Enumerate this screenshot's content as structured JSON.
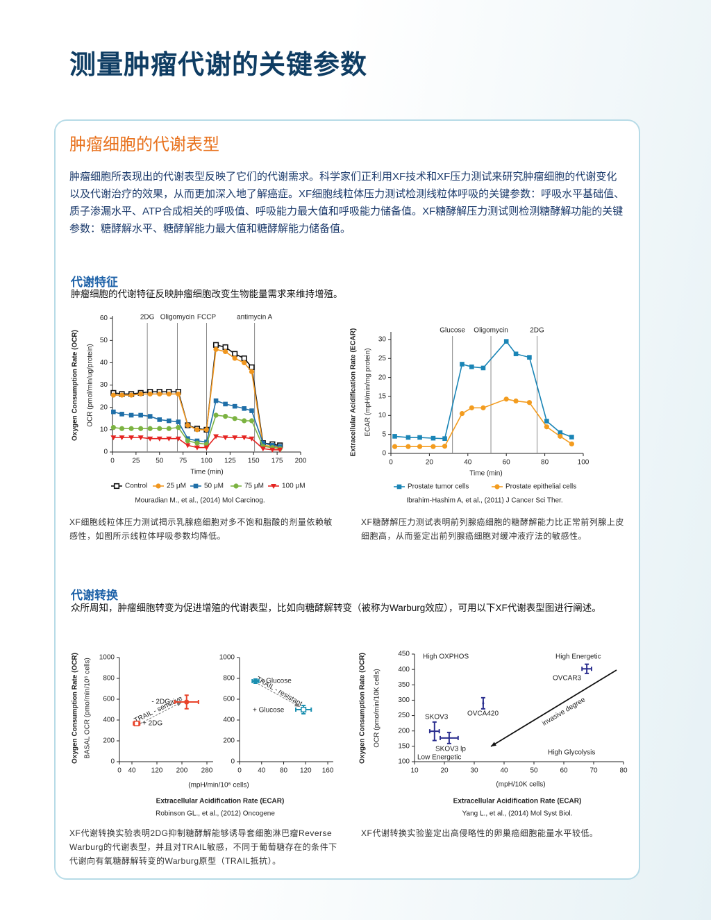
{
  "title": "测量肿瘤代谢的关键参数",
  "box": {
    "heading": "肿瘤细胞的代谢表型",
    "intro": "肿瘤细胞所表现出的代谢表型反映了它们的代谢需求。科学家们正利用XF技术和XF压力测试来研究肿瘤细胞的代谢变化以及代谢治疗的效果，从而更加深入地了解癌症。XF细胞线粒体压力测试检测线粒体呼吸的关键参数：呼吸水平基础值、质子渗漏水平、ATP合成相关的呼吸值、呼吸能力最大值和呼吸能力储备值。XF糖酵解压力测试则检测糖酵解功能的关键参数：糖酵解水平、糖酵解能力最大值和糖酵解能力储备值。"
  },
  "sections": [
    {
      "heading": "代谢特征",
      "subtitle": "肿瘤细胞的代谢特征反映肿瘤细胞改变生物能量需求来维持增殖。",
      "captions": [
        "XF细胞线粒体压力测试揭示乳腺癌细胞对多不饱和脂酸的剂量依赖敏感性，如图所示线粒体呼吸参数均降低。",
        "XF糖酵解压力测试表明前列腺癌细胞的糖酵解能力比正常前列腺上皮细胞高，从而鉴定出前列腺癌细胞对缓冲液疗法的敏感性。"
      ]
    },
    {
      "heading": "代谢转换",
      "subtitle": "众所周知，肿瘤细胞转变为促进增殖的代谢表型，比如向糖酵解转变（被称为Warburg效应），可用以下XF代谢表型图进行阐述。",
      "captions": [
        "XF代谢转换实验表明2DG抑制糖酵解能够诱导套细胞淋巴瘤Reverse Warburg的代谢表型，并且对TRAIL敏感，不同于葡萄糖存在的条件下代谢向有氧糖酵解转变的Warburg原型（TRAIL抵抗）。",
        "XF代谢转换实验鉴定出高侵略性的卵巢癌细胞能量水平较低。"
      ]
    }
  ],
  "chart_data": [
    {
      "type": "line",
      "ylabel_bold": "Oxygen Consumption Rate (OCR)",
      "ylabel": "OCR (pmol/min/ug/protein)",
      "xlabel": "Time (min)",
      "citation": "Mouradian M., et al., (2014) Mol Carcinog.",
      "xlim": [
        0,
        200
      ],
      "xticks": [
        0,
        25,
        50,
        75,
        100,
        125,
        150,
        175,
        200
      ],
      "ylim": [
        0,
        61
      ],
      "yticks": [
        0,
        10,
        20,
        30,
        40,
        50,
        60
      ],
      "markers": [
        {
          "label": "2DG",
          "x": 37
        },
        {
          "label": "Oligomycin",
          "x": 69
        },
        {
          "label": "FCCP",
          "x": 100
        },
        {
          "label": "antimycin A",
          "x": 151
        }
      ],
      "x": [
        1,
        10,
        20,
        30,
        40,
        50,
        60,
        70,
        80,
        90,
        100,
        110,
        120,
        130,
        140,
        148,
        160,
        170,
        178
      ],
      "series": [
        {
          "name": "Control",
          "color": "#111111",
          "marker": "open-square",
          "values": [
            26.5,
            26,
            26,
            26.5,
            27,
            27,
            27,
            27,
            12,
            10.5,
            10,
            48,
            47,
            44,
            42,
            38,
            4,
            3.5,
            3
          ]
        },
        {
          "name": "25 μM",
          "color": "#f0961e",
          "marker": "circle",
          "values": [
            25.5,
            25.5,
            25.5,
            26,
            26,
            26,
            26,
            26,
            12,
            10,
            10,
            46,
            45,
            42,
            40,
            36,
            3,
            2.5,
            2
          ]
        },
        {
          "name": "50 μM",
          "color": "#1f6fa8",
          "marker": "square",
          "values": [
            18,
            17,
            16.5,
            16.5,
            16,
            14.5,
            14,
            13.5,
            6,
            5,
            4.5,
            23,
            21.5,
            20.5,
            19.5,
            18.5,
            4,
            3,
            2.5
          ]
        },
        {
          "name": "75 μM",
          "color": "#7cb342",
          "marker": "circle",
          "values": [
            11,
            10.5,
            10.5,
            10.5,
            10.5,
            10.5,
            10.5,
            11,
            5,
            4,
            3.5,
            16.5,
            16,
            15,
            14,
            14,
            2.5,
            2,
            1.5
          ]
        },
        {
          "name": "100 μM",
          "color": "#e52421",
          "marker": "triangle-down",
          "values": [
            6.5,
            6.5,
            6.5,
            6.5,
            6,
            6,
            6,
            6,
            3,
            2,
            2,
            7,
            6.5,
            6.5,
            6.5,
            6,
            1.5,
            1,
            1
          ]
        }
      ]
    },
    {
      "type": "line",
      "ylabel_bold": "Extracellular Acidification Rate (ECAR)",
      "ylabel": "ECAR (mpH/min/mg protein)",
      "xlabel": "Time (min)",
      "citation": "Ibrahim-Hashim A, et al., (2011) J Cancer Sci Ther.",
      "xlim": [
        0,
        100
      ],
      "xticks": [
        0,
        20,
        40,
        60,
        80,
        100
      ],
      "ylim": [
        0,
        32
      ],
      "yticks": [
        0,
        5,
        10,
        15,
        20,
        25,
        30
      ],
      "markers": [
        {
          "label": "Glucose",
          "x": 32
        },
        {
          "label": "Oligomycin",
          "x": 52
        },
        {
          "label": "2DG",
          "x": 76
        }
      ],
      "x": [
        2,
        9,
        15,
        22,
        28,
        37,
        42,
        48,
        60,
        65,
        72,
        81,
        88,
        94
      ],
      "series": [
        {
          "name": "Prostate tumor cells",
          "color": "#1a85b6",
          "marker": "square",
          "values": [
            4.5,
            4.2,
            4.2,
            4,
            3.9,
            23.5,
            22.8,
            22.5,
            29.5,
            26.2,
            25.3,
            8.5,
            5.5,
            4.3
          ]
        },
        {
          "name": "Prostate epithelial cells",
          "color": "#f39c1f",
          "marker": "circle",
          "values": [
            1.8,
            1.8,
            1.8,
            1.8,
            1.9,
            10.5,
            12,
            12,
            14.3,
            13.8,
            13.4,
            7,
            4.5,
            2.5
          ]
        }
      ]
    },
    {
      "type": "scatter",
      "ylabel_bold": "Oxygen Consumption Rate (OCR)",
      "ylabel": "BASAL OCR (pmo/min/10⁶ cells)",
      "xlabel": "(mpH/min/10⁶ cells)",
      "xlabel_bold": "Extracellular Acidification Rate (ECAR)",
      "citation": "Robinson GL., et al., (2012) Oncogene",
      "xlim": [
        0,
        300
      ],
      "xticks": [
        0,
        40,
        120,
        200,
        280
      ],
      "ylim": [
        0,
        1000
      ],
      "yticks": [
        0,
        200,
        400,
        600,
        800,
        1000
      ],
      "color": "#e8432a",
      "labels": [
        "- 2DG",
        "+ 2DG"
      ],
      "point_markers": [
        "circle",
        "open-square"
      ],
      "arrow_label": "TRAIL - sensitive",
      "x": [
        215,
        55
      ],
      "y": [
        573,
        367
      ],
      "xerr": [
        38,
        10
      ],
      "yerr": [
        65,
        20
      ]
    },
    {
      "type": "scatter",
      "xlim": [
        0,
        170
      ],
      "xticks": [
        0,
        40,
        80,
        120,
        160
      ],
      "ylim": [
        0,
        1000
      ],
      "yticks": [
        0,
        200,
        400,
        600,
        800,
        1000
      ],
      "color": "#1a8fb0",
      "labels": [
        "- Glucose",
        "+ Glucose"
      ],
      "point_markers": [
        "circle",
        "open-square"
      ],
      "arrow_label": "TRAIL - resistant",
      "x": [
        29,
        116
      ],
      "y": [
        773,
        500
      ],
      "xerr": [
        6,
        14
      ],
      "yerr": [
        20,
        40
      ]
    },
    {
      "type": "scatter",
      "ylabel_bold": "Oxygen Consumption Rate (OCR)",
      "ylabel": "OCR (pmo/min/10K cells)",
      "xlabel": "(mpH/10K cells)",
      "xlabel_bold": "Extracellular Acidification Rate (ECAR)",
      "citation": "Yang L., et al., (2014) Mol Syst Biol.",
      "xlim": [
        10,
        80
      ],
      "xticks": [
        10,
        20,
        30,
        40,
        50,
        60,
        70,
        80
      ],
      "ylim": [
        100,
        450
      ],
      "yticks": [
        100,
        150,
        200,
        250,
        300,
        350,
        400,
        450
      ],
      "color": "#2b2f8f",
      "labels": [
        "OVCAR3",
        "OVCA420",
        "SKOV3",
        "SKOV3 lp"
      ],
      "arrow_label": "invasive degree",
      "quadrant_labels": [
        "High OXPHOS",
        "High Energetic",
        "Low Energetic",
        "High Glycolysis"
      ],
      "x": [
        67.7,
        33,
        16.7,
        21.6
      ],
      "y": [
        402,
        290,
        199,
        177
      ],
      "xerr": [
        1.6,
        0,
        1.6,
        3
      ],
      "yerr": [
        15,
        18,
        30,
        18
      ]
    }
  ]
}
